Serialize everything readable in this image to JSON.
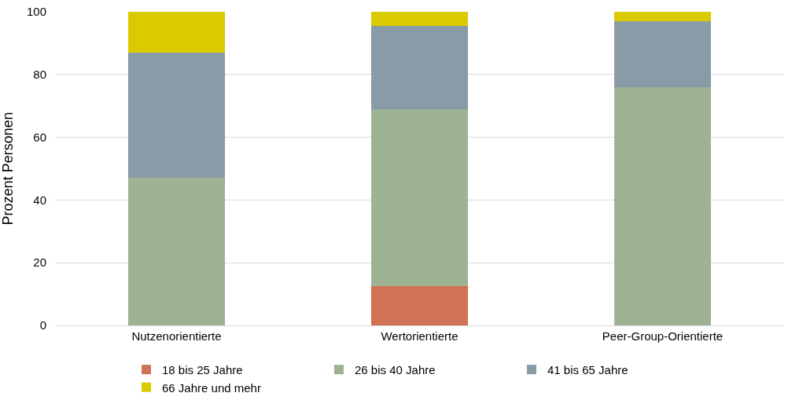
{
  "chart_data": {
    "type": "bar",
    "stacked": true,
    "ylabel": "Prozent Personen",
    "categories": [
      "Nutzenorientierte",
      "Wertorientierte",
      "Peer-Group-Orientierte"
    ],
    "series": [
      {
        "name": "18 bis 25 Jahre",
        "color": "#d07254",
        "values": [
          0,
          12.5,
          0
        ]
      },
      {
        "name": "26 bis 40 Jahre",
        "color": "#9eb294",
        "values": [
          47,
          56.5,
          76
        ]
      },
      {
        "name": "41 bis 65 Jahre",
        "color": "#889ba6",
        "values": [
          40,
          26.5,
          21
        ]
      },
      {
        "name": "66 Jahre und mehr",
        "color": "#dbca00",
        "values": [
          13,
          4.5,
          3
        ]
      }
    ],
    "ylim": [
      0,
      100
    ],
    "yticks": [
      0,
      20,
      40,
      60,
      80,
      100
    ],
    "grid": "y",
    "legend": "bottom"
  }
}
